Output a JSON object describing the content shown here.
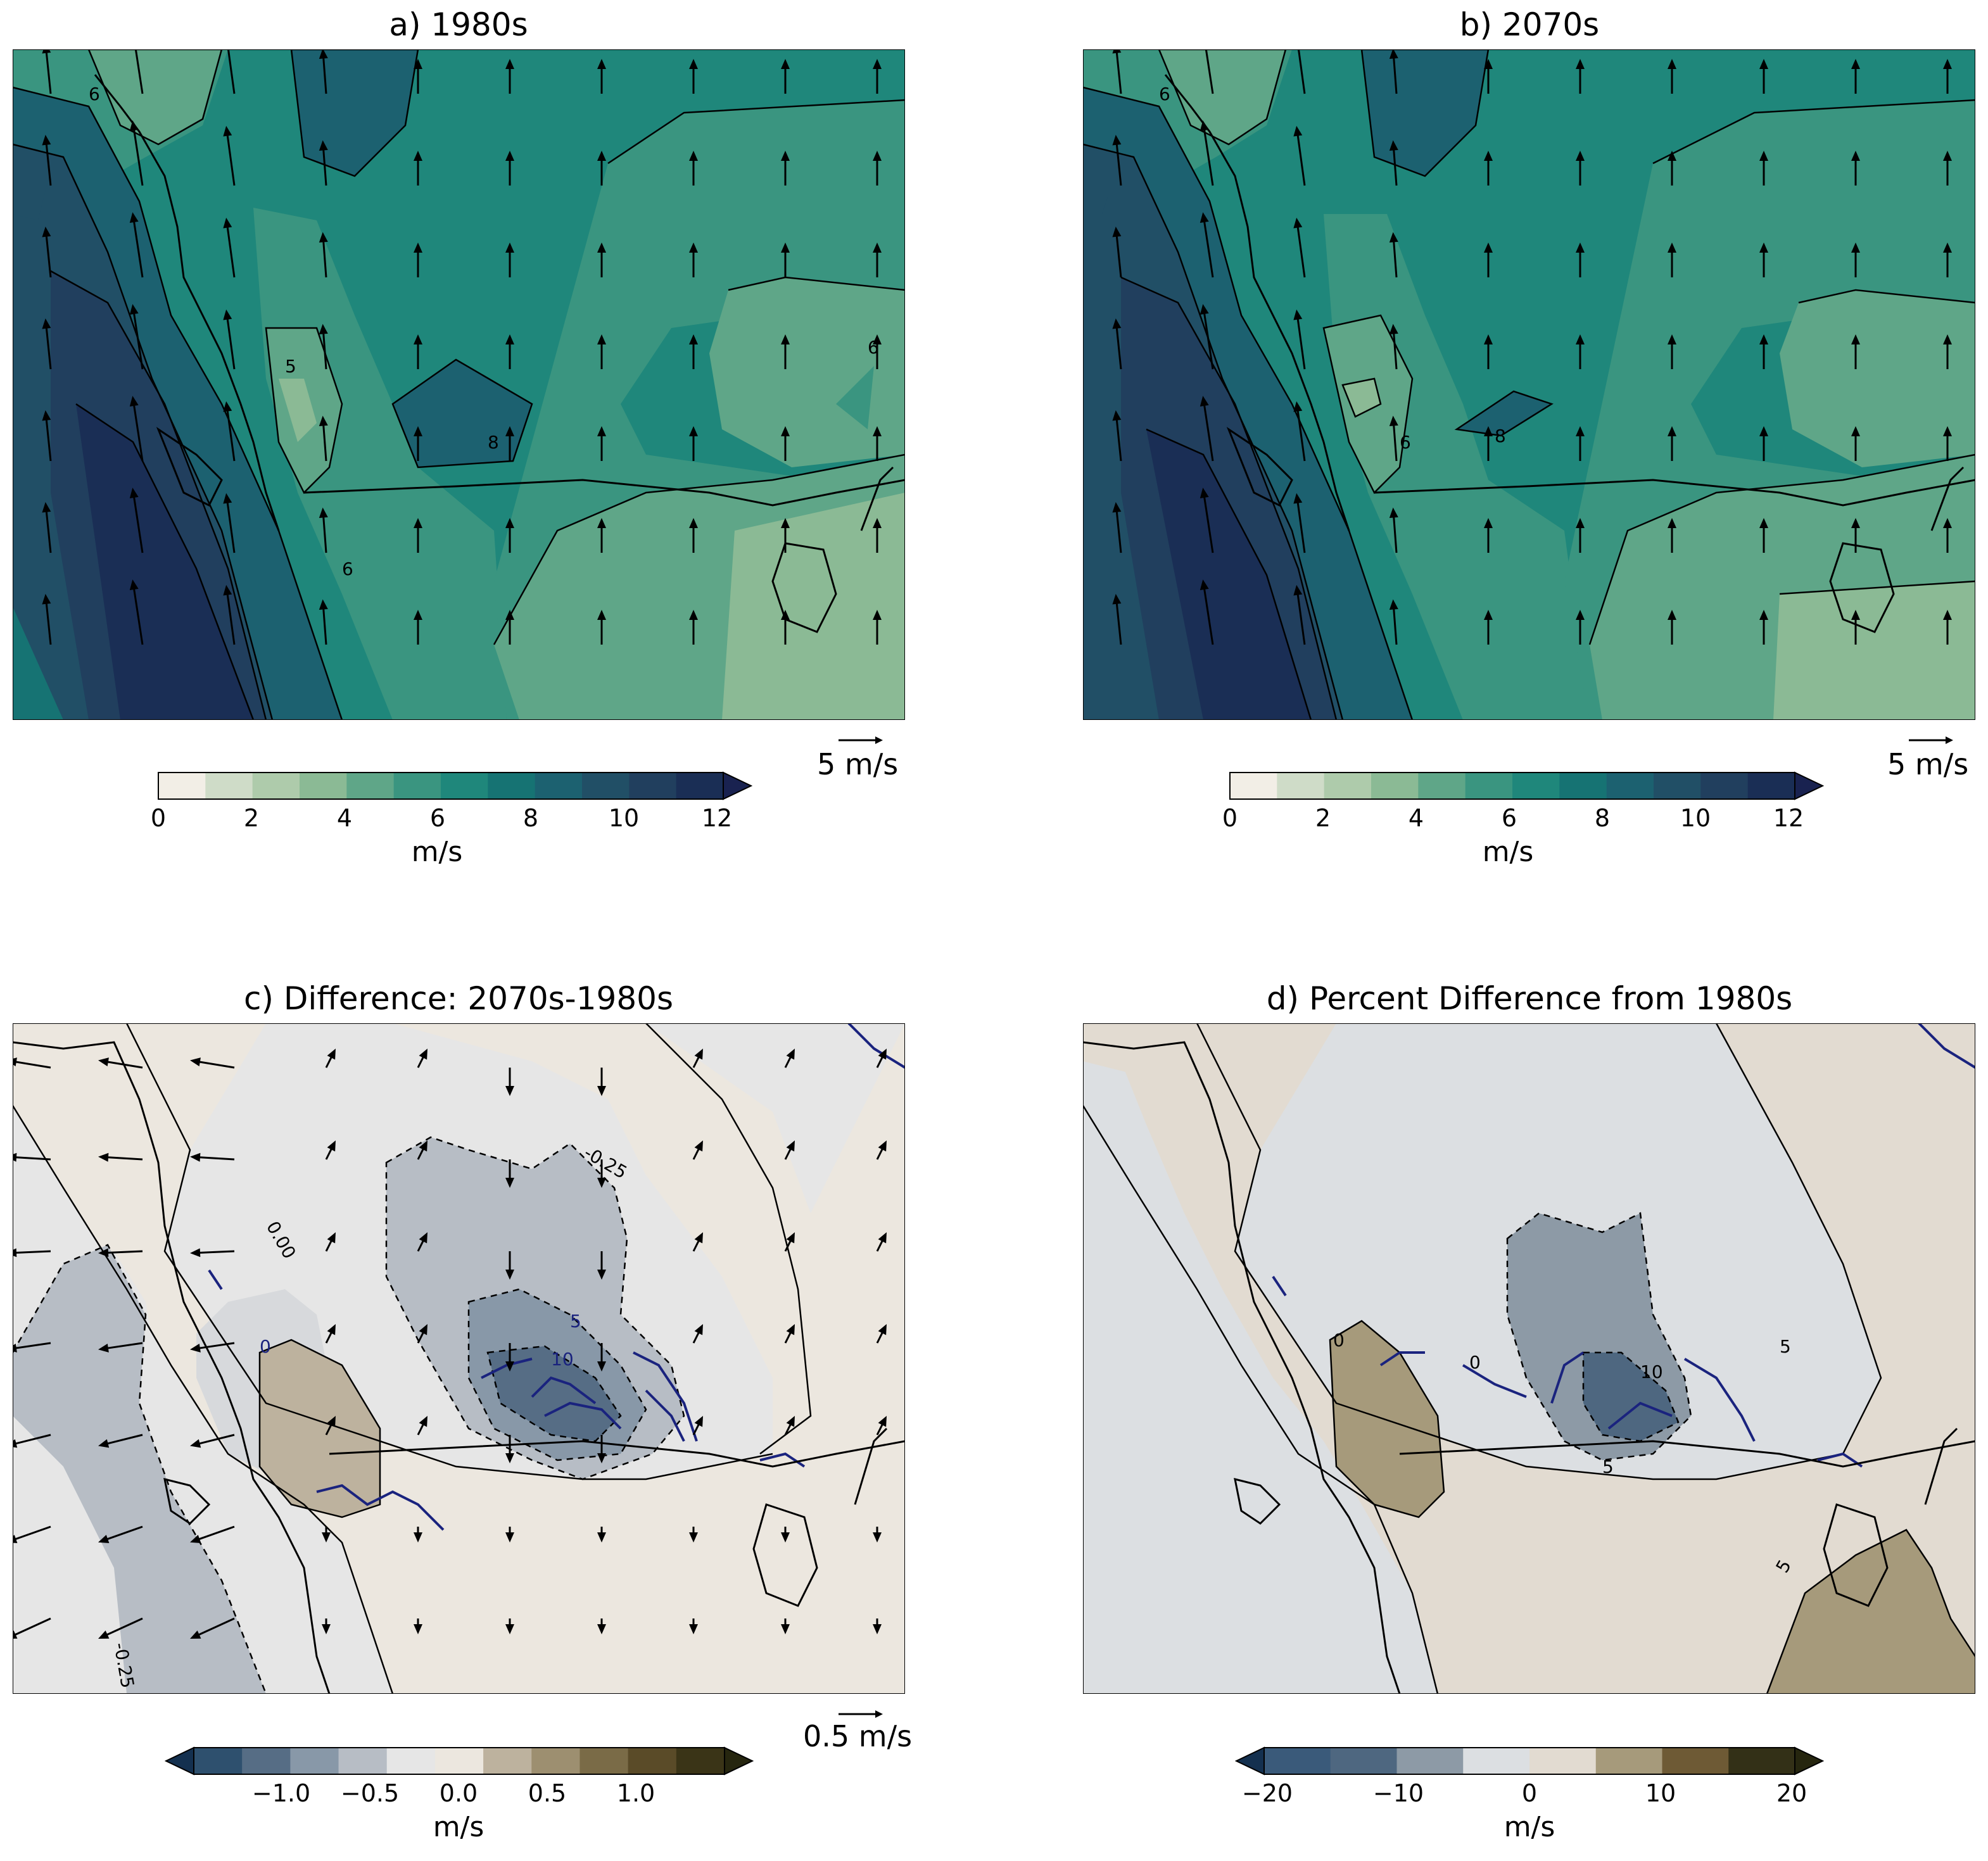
{
  "chart_data": [
    {
      "type": "heatmap",
      "title": "a) 1980s",
      "variable_units": "m/s",
      "colorbar": {
        "levels": [
          0,
          1,
          2,
          3,
          4,
          5,
          6,
          7,
          8,
          9,
          10,
          11,
          12
        ],
        "tick_labels": [
          "0",
          "2",
          "4",
          "6",
          "8",
          "10",
          "12"
        ],
        "extend": "max",
        "label": "m/s"
      },
      "colors": [
        "#f2eee6",
        "#cfdcc8",
        "#aecbab",
        "#8bba95",
        "#5fa688",
        "#3a9580",
        "#1f877b",
        "#167373",
        "#1c6170",
        "#214f66",
        "#213f5e",
        "#1a2e55",
        "#192250"
      ],
      "contour_labels": [
        "6",
        "5",
        "8",
        "6",
        "6"
      ],
      "vector_reference": "5 m/s",
      "field_description": "wind speed field with wind vectors"
    },
    {
      "type": "heatmap",
      "title": "b) 2070s",
      "variable_units": "m/s",
      "colorbar": {
        "levels": [
          0,
          1,
          2,
          3,
          4,
          5,
          6,
          7,
          8,
          9,
          10,
          11,
          12
        ],
        "tick_labels": [
          "0",
          "2",
          "4",
          "6",
          "8",
          "10",
          "12"
        ],
        "extend": "max",
        "label": "m/s"
      },
      "colors": [
        "#f2eee6",
        "#cfdcc8",
        "#aecbab",
        "#8bba95",
        "#5fa688",
        "#3a9580",
        "#1f877b",
        "#167373",
        "#1c6170",
        "#214f66",
        "#213f5e",
        "#1a2e55",
        "#192250"
      ],
      "contour_labels": [
        "6",
        "8",
        "6"
      ],
      "vector_reference": "5 m/s"
    },
    {
      "type": "heatmap",
      "title": "c) Difference: 2070s-1980s",
      "variable_units": "m/s",
      "colorbar": {
        "levels": [
          -1.5,
          -1.25,
          -1.0,
          -0.75,
          -0.5,
          -0.25,
          0.0,
          0.25,
          0.5,
          0.75,
          1.0,
          1.25,
          1.5
        ],
        "tick_labels": [
          "−1.0",
          "−0.5",
          "0.0",
          "0.5",
          "1.0"
        ],
        "extend": "both",
        "label": "m/s"
      },
      "colors": [
        "#14304f",
        "#2e506e",
        "#566d85",
        "#8898a8",
        "#b7bdc5",
        "#e6e6e6",
        "#ece7df",
        "#bdb29e",
        "#9d8f70",
        "#7a6b47",
        "#5a4b28",
        "#3a3417",
        "#26260f"
      ],
      "contour_labels": [
        "-0.25",
        "0.00",
        "-0.25"
      ],
      "overlay_contour_labels": [
        "0",
        "5",
        "10"
      ],
      "vector_reference": "0.5 m/s"
    },
    {
      "type": "heatmap",
      "title": "d) Percent Difference from 1980s",
      "variable_units": "m/s",
      "colorbar": {
        "levels": [
          -25,
          -20,
          -15,
          -10,
          -5,
          0,
          5,
          10,
          15,
          20,
          25
        ],
        "tick_labels": [
          "−20",
          "−10",
          "0",
          "10",
          "20"
        ],
        "extend": "both",
        "label": "m/s"
      },
      "colors": [
        "#14304f",
        "#3a5a7a",
        "#4e6780",
        "#8d9aa6",
        "#dcdfe2",
        "#e2dbd1",
        "#a69a7b",
        "#6e5a35",
        "#333017",
        "#26260f"
      ],
      "contour_labels": [
        "0",
        "5",
        "10",
        "0",
        "5",
        "5"
      ]
    }
  ],
  "panels": {
    "a": {
      "title": "a) 1980s",
      "ref": "5 m/s",
      "cbar_label": "m/s",
      "ticks": [
        "0",
        "2",
        "4",
        "6",
        "8",
        "10",
        "12"
      ]
    },
    "b": {
      "title": "b) 2070s",
      "ref": "5 m/s",
      "cbar_label": "m/s",
      "ticks": [
        "0",
        "2",
        "4",
        "6",
        "8",
        "10",
        "12"
      ]
    },
    "c": {
      "title": "c) Difference: 2070s-1980s",
      "ref": "0.5 m/s",
      "cbar_label": "m/s",
      "ticks": [
        "−1.0",
        "−0.5",
        "0.0",
        "0.5",
        "1.0"
      ]
    },
    "d": {
      "title": "d) Percent Difference from 1980s",
      "cbar_label": "m/s",
      "ticks": [
        "−20",
        "−10",
        "0",
        "10",
        "20"
      ]
    }
  },
  "colors": {
    "c_blue_contour": "#1a237e",
    "coast": "#000000"
  }
}
